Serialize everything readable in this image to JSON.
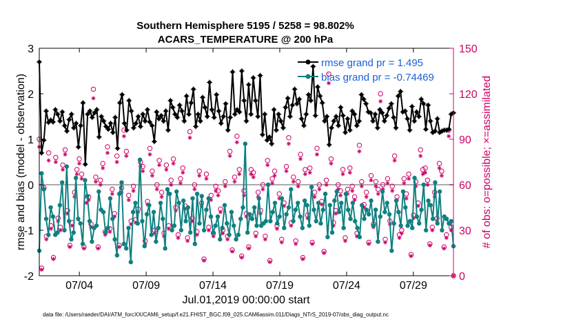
{
  "chart_data": {
    "type": "line",
    "title": "Southern Hemisphere 5195 / 5258 = 98.802%",
    "subtitle": "ACARS_TEMPERATURE @ 200 hPa",
    "xlabel": "Jul.01,2019 00:00:00 start",
    "ylabel": "rmse and bias (model - observation)",
    "ylabel_right": "# of obs: o=possible; ×=assimilated",
    "footnote": "data file: /Users/raeder/DAI/ATM_forcXX/CAM6_setup/f.e21.FHIST_BGC.f09_025.CAM6assim.011/Diags_NTrS_2019-07/obs_diag_output.nc",
    "xlim": [
      1.0,
      32.0
    ],
    "ylim": [
      -2,
      3
    ],
    "ylim_right": [
      0,
      150
    ],
    "x_ticks": [
      4,
      9,
      14,
      19,
      24,
      29
    ],
    "x_tick_labels": [
      "07/04",
      "07/09",
      "07/14",
      "07/19",
      "07/24",
      "07/29"
    ],
    "y_ticks": [
      -2,
      -1,
      0,
      1,
      2,
      3
    ],
    "y_tick_labels": [
      "-2",
      "-1",
      "0",
      "1",
      "2",
      "3"
    ],
    "y_ticks_right": [
      0,
      30,
      60,
      90,
      120,
      150
    ],
    "y_tick_labels_right": [
      "0",
      "30",
      "60",
      "90",
      "120",
      "150"
    ],
    "colors": {
      "rmse": "#000000",
      "bias": "#0f8080",
      "obs": "#cc0066",
      "zero_line": "#aaaaaa"
    },
    "series": [
      {
        "name": "rmse grand pr = 1.495",
        "color": "#000000",
        "values": [
          2.7,
          0.7,
          0.98,
          1.62,
          1.37,
          1.42,
          1.38,
          1.65,
          1.55,
          1.4,
          1.6,
          1.3,
          1.18,
          1.43,
          1.55,
          1.25,
          1.35,
          0.83,
          1.3,
          1.8,
          0.45,
          1.55,
          1.62,
          1.48,
          1.58,
          1.65,
          1.05,
          1.5,
          1.4,
          1.28,
          1.22,
          1.35,
          1.15,
          1.48,
          0.8,
          1.8,
          1.98,
          1.35,
          1.2,
          1.85,
          1.62,
          1.25,
          1.35,
          1.5,
          1.28,
          1.55,
          1.4,
          1.65,
          1.38,
          1.3,
          0.95,
          1.6,
          1.45,
          1.52,
          1.4,
          1.62,
          1.2,
          1.85,
          1.7,
          1.55,
          1.48,
          1.75,
          1.62,
          1.4,
          1.95,
          1.55,
          1.8,
          2.1,
          1.28,
          1.55,
          1.4,
          1.92,
          1.7,
          1.5,
          2.25,
          1.65,
          1.48,
          1.98,
          1.62,
          1.35,
          1.5,
          1.78,
          1.2,
          1.48,
          2.48,
          1.55,
          1.65,
          1.6,
          2.5,
          1.85,
          1.4,
          2.2,
          1.55,
          2.35,
          1.85,
          1.5,
          2.4,
          1.1,
          1.55,
          0.98,
          1.05,
          0.9,
          1.65,
          1.2,
          1.55,
          1.4,
          1.25,
          1.7,
          1.9,
          1.5,
          1.75,
          2.1,
          1.78,
          1.88,
          1.45,
          1.3,
          1.55,
          1.98,
          1.85,
          2.6,
          1.52,
          2.15,
          1.95,
          1.8,
          1.4,
          1.5,
          0.88,
          1.25,
          1.4,
          1.5,
          1.3,
          1.7,
          1.52,
          1.15,
          1.45,
          1.2,
          1.62,
          1.55,
          1.3,
          1.4,
          1.98,
          1.88,
          1.78,
          1.6,
          1.58,
          1.4,
          1.55,
          1.25,
          1.65,
          1.58,
          1.4,
          1.52,
          1.68,
          1.78,
          1.48,
          1.25,
          1.95,
          2.05,
          1.6,
          1.62,
          1.45,
          1.2,
          1.72,
          1.4,
          1.6,
          1.5,
          1.88,
          1.78,
          1.22,
          1.75,
          1.4,
          1.15,
          1.18,
          1.45,
          1.15,
          1.18,
          1.2,
          1.2,
          1.22,
          1.55,
          1.58
        ]
      },
      {
        "name": "bias grand pr = -0.74469",
        "color": "#0f8080",
        "values": [
          -1.45,
          0.25,
          -0.1,
          -0.75,
          -1.1,
          -0.5,
          -0.7,
          -1.1,
          -1.05,
          -0.45,
          0.05,
          -1.0,
          0.4,
          -0.8,
          -1.2,
          -1.05,
          0.15,
          -0.75,
          -0.85,
          -1.3,
          0.1,
          -0.25,
          -0.8,
          -1.25,
          -0.95,
          -0.9,
          -0.15,
          -0.55,
          -0.6,
          -1.05,
          -0.95,
          -0.3,
          -0.75,
          -1.2,
          -1.55,
          -0.2,
          0.05,
          -1.3,
          -1.4,
          -0.95,
          -1.7,
          -0.6,
          -0.4,
          -0.85,
          0.55,
          -0.8,
          -1.35,
          -0.65,
          -0.45,
          -1.1,
          -0.6,
          -1.25,
          -0.95,
          -0.4,
          -0.75,
          -1.4,
          -0.1,
          -0.2,
          -1.0,
          -0.9,
          -0.15,
          -0.4,
          -1.0,
          -0.35,
          -0.8,
          -0.5,
          -1.05,
          -0.3,
          -1.3,
          -0.2,
          -0.85,
          -0.25,
          -1.0,
          -0.55,
          -0.3,
          -0.7,
          -1.05,
          -0.9,
          -0.7,
          -1.2,
          -0.95,
          -0.45,
          -0.85,
          -1.1,
          -0.6,
          -0.9,
          -1.2,
          -1.1,
          -0.75,
          -0.5,
          0.9,
          -1.05,
          -0.65,
          -0.75,
          -0.5,
          -0.9,
          -0.3,
          -0.9,
          -0.85,
          -0.8,
          0.0,
          -0.8,
          -0.6,
          -0.4,
          -0.85,
          -0.7,
          -0.3,
          -0.95,
          -0.65,
          -0.5,
          -0.1,
          -0.8,
          -0.55,
          -0.4,
          -0.7,
          -0.95,
          -0.35,
          -0.45,
          -0.9,
          -0.05,
          -0.55,
          -0.8,
          -0.4,
          -0.85,
          -0.55,
          -0.2,
          -1.15,
          -0.45,
          -1.05,
          -0.35,
          -0.15,
          -0.6,
          -0.4,
          -0.95,
          -0.2,
          -0.55,
          -0.75,
          -0.4,
          -0.8,
          -0.95,
          -1.15,
          -0.45,
          -0.75,
          -0.55,
          -0.65,
          -0.35,
          -0.9,
          -0.55,
          -1.25,
          -0.7,
          -0.15,
          -0.6,
          -0.4,
          -0.65,
          -1.45,
          -0.85,
          -0.35,
          -0.6,
          -0.9,
          -0.15,
          -0.5,
          -0.9,
          -0.8,
          -0.95,
          0.15,
          -0.7,
          -0.85,
          -0.55,
          0.0,
          -1.0,
          -0.35,
          -0.45,
          -0.75,
          0.05,
          -0.85,
          -0.15,
          -1.0,
          -0.7,
          -0.75,
          -0.85,
          -0.8,
          -1.35
        ]
      }
    ],
    "obs_possible": [
      90,
      5,
      58,
      26,
      81,
      33,
      12,
      78,
      38,
      32,
      73,
      83,
      43,
      20,
      35,
      55,
      70,
      77,
      67,
      19,
      50,
      52,
      34,
      123,
      65,
      19,
      63,
      74,
      29,
      85,
      31,
      57,
      41,
      79,
      20,
      58,
      96,
      82,
      53,
      36,
      59,
      37,
      44,
      75,
      72,
      23,
      49,
      84,
      69,
      30,
      60,
      76,
      55,
      28,
      73,
      33,
      63,
      77,
      45,
      27,
      64,
      71,
      46,
      25,
      95,
      38,
      60,
      29,
      69,
      48,
      11,
      67,
      32,
      53,
      28,
      59,
      56,
      44,
      30,
      62,
      26,
      82,
      17,
      65,
      92,
      70,
      13,
      56,
      41,
      19,
      70,
      68,
      28,
      55,
      43,
      60,
      26,
      76,
      10,
      64,
      69,
      33,
      54,
      24,
      48,
      72,
      91,
      35,
      65,
      23,
      62,
      80,
      12,
      70,
      40,
      71,
      22,
      55,
      84,
      60,
      49,
      16,
      63,
      133,
      77,
      35,
      43,
      60,
      56,
      70,
      25,
      57,
      71,
      59,
      52,
      28,
      86,
      62,
      47,
      55,
      22,
      66,
      34,
      62,
      57,
      120,
      60,
      24,
      64,
      36,
      59,
      79,
      52,
      27,
      30,
      64,
      54,
      67,
      14,
      40,
      62,
      48,
      83,
      70,
      71,
      63,
      21,
      32,
      55,
      38,
      74,
      69,
      19,
      27,
      96,
      32,
      0
    ],
    "obs_assimilated": [
      85,
      4,
      57,
      24,
      76,
      31,
      11,
      75,
      36,
      30,
      70,
      80,
      41,
      19,
      33,
      52,
      67,
      74,
      64,
      18,
      48,
      50,
      32,
      117,
      62,
      18,
      60,
      71,
      27,
      81,
      29,
      54,
      39,
      75,
      19,
      55,
      92,
      79,
      50,
      34,
      56,
      35,
      42,
      72,
      69,
      21,
      47,
      80,
      66,
      28,
      57,
      73,
      52,
      26,
      70,
      31,
      60,
      74,
      43,
      25,
      61,
      68,
      44,
      23,
      91,
      36,
      57,
      27,
      66,
      46,
      10,
      64,
      30,
      50,
      26,
      56,
      53,
      42,
      28,
      59,
      24,
      79,
      16,
      62,
      88,
      67,
      12,
      53,
      39,
      18,
      67,
      65,
      26,
      52,
      41,
      57,
      24,
      73,
      9,
      61,
      66,
      31,
      51,
      22,
      46,
      69,
      87,
      33,
      62,
      21,
      59,
      77,
      11,
      67,
      38,
      68,
      21,
      52,
      80,
      57,
      47,
      15,
      60,
      127,
      74,
      33,
      41,
      57,
      53,
      67,
      23,
      54,
      68,
      56,
      50,
      26,
      82,
      59,
      45,
      52,
      21,
      63,
      32,
      59,
      54,
      115,
      57,
      22,
      61,
      34,
      56,
      76,
      50,
      25,
      28,
      61,
      51,
      64,
      13,
      38,
      59,
      46,
      79,
      67,
      68,
      60,
      20,
      30,
      52,
      36,
      71,
      66,
      18,
      25,
      92,
      30,
      0
    ]
  }
}
